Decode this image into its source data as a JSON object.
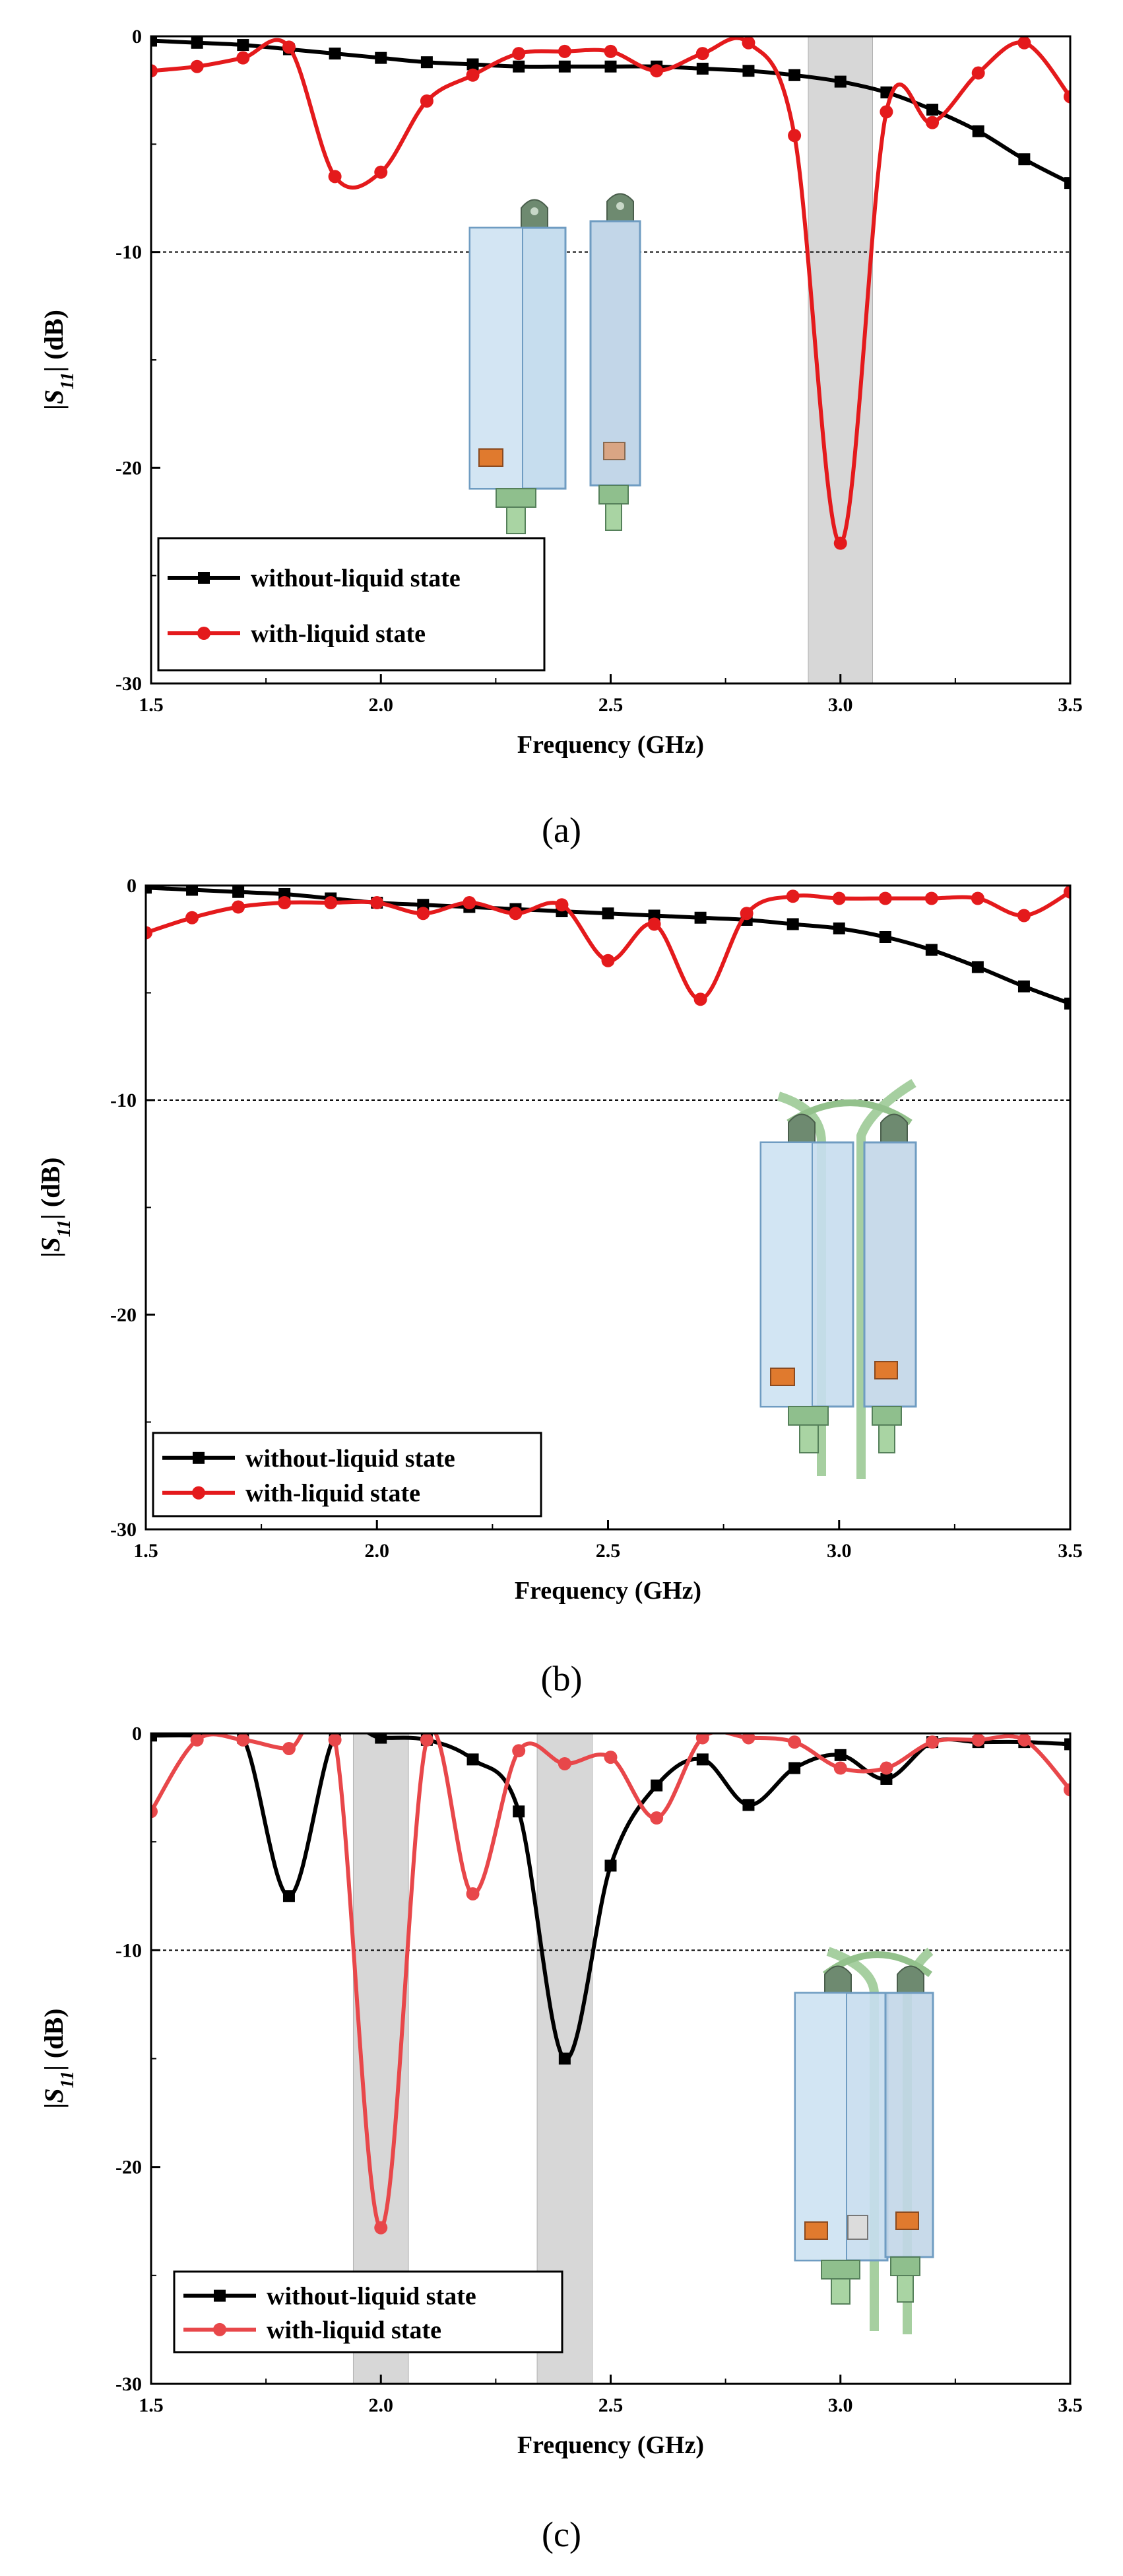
{
  "colors": {
    "series_without": "#000000",
    "series_with_a": "#e41a1c",
    "series_with_b": "#e41a1c",
    "series_with_c": "#e8474a",
    "highlight_band": "#d0d0d0",
    "threshold_line": "#000000"
  },
  "chart_data": [
    {
      "type": "line",
      "panel": "(a)",
      "xlabel": "Frequency (GHz)",
      "ylabel_prefix": "|",
      "ylabel_symbol": "S",
      "ylabel_subscript": "11",
      "ylabel_suffix": "| (dB)",
      "xlim": [
        1.5,
        3.5
      ],
      "ylim": [
        -30,
        0
      ],
      "xticks": [
        "1.5",
        "2.0",
        "2.5",
        "3.0",
        "3.5"
      ],
      "yticks": [
        "0",
        "-10",
        "-20",
        "-30"
      ],
      "ytick_values": [
        0,
        -10,
        -20,
        -30
      ],
      "threshold": -10,
      "highlight_bands": [
        [
          2.93,
          3.07
        ]
      ],
      "legend_position": "bottom-left",
      "inset": "antenna-without-tube",
      "series": [
        {
          "name": "without-liquid state",
          "color_key": "series_without",
          "marker": "square",
          "x": [
            1.5,
            1.6,
            1.7,
            1.8,
            1.9,
            2.0,
            2.1,
            2.2,
            2.3,
            2.4,
            2.5,
            2.6,
            2.7,
            2.8,
            2.9,
            3.0,
            3.1,
            3.2,
            3.3,
            3.4,
            3.5
          ],
          "y": [
            -0.2,
            -0.3,
            -0.4,
            -0.6,
            -0.8,
            -1.0,
            -1.2,
            -1.3,
            -1.4,
            -1.4,
            -1.4,
            -1.4,
            -1.5,
            -1.6,
            -1.8,
            -2.1,
            -2.6,
            -3.4,
            -4.4,
            -5.7,
            -6.8
          ]
        },
        {
          "name": "with-liquid state",
          "color_key": "series_with_a",
          "marker": "circle",
          "x": [
            1.5,
            1.6,
            1.7,
            1.8,
            1.9,
            2.0,
            2.1,
            2.2,
            2.3,
            2.4,
            2.5,
            2.6,
            2.7,
            2.8,
            2.9,
            3.0,
            3.1,
            3.2,
            3.3,
            3.4,
            3.5
          ],
          "y": [
            -1.6,
            -1.4,
            -1.0,
            -0.5,
            -6.5,
            -6.3,
            -3.0,
            -1.8,
            -0.8,
            -0.7,
            -0.7,
            -1.6,
            -0.8,
            -0.3,
            -4.6,
            -23.5,
            -3.5,
            -4.0,
            -1.7,
            -0.3,
            -2.8
          ]
        }
      ]
    },
    {
      "type": "line",
      "panel": "(b)",
      "xlabel": "Frequency (GHz)",
      "ylabel_prefix": "|",
      "ylabel_symbol": "S",
      "ylabel_subscript": "11",
      "ylabel_suffix": "| (dB)",
      "xlim": [
        1.5,
        3.5
      ],
      "ylim": [
        -30,
        0
      ],
      "xticks": [
        "1.5",
        "2.0",
        "2.5",
        "3.0",
        "3.5"
      ],
      "yticks": [
        "0",
        "-10",
        "-20",
        "-30"
      ],
      "ytick_values": [
        0,
        -10,
        -20,
        -30
      ],
      "threshold": -10,
      "highlight_bands": [],
      "legend_position": "bottom-left",
      "inset": "antenna-with-tube",
      "series": [
        {
          "name": "without-liquid state",
          "color_key": "series_without",
          "marker": "square",
          "x": [
            1.5,
            1.6,
            1.7,
            1.8,
            1.9,
            2.0,
            2.1,
            2.2,
            2.3,
            2.4,
            2.5,
            2.6,
            2.7,
            2.8,
            2.9,
            3.0,
            3.1,
            3.2,
            3.3,
            3.4,
            3.5
          ],
          "y": [
            -0.1,
            -0.2,
            -0.3,
            -0.4,
            -0.6,
            -0.8,
            -0.9,
            -1.0,
            -1.1,
            -1.2,
            -1.3,
            -1.4,
            -1.5,
            -1.6,
            -1.8,
            -2.0,
            -2.4,
            -3.0,
            -3.8,
            -4.7,
            -5.5
          ]
        },
        {
          "name": "with-liquid state",
          "color_key": "series_with_b",
          "marker": "circle",
          "x": [
            1.5,
            1.6,
            1.7,
            1.8,
            1.9,
            2.0,
            2.1,
            2.2,
            2.3,
            2.4,
            2.5,
            2.6,
            2.7,
            2.8,
            2.9,
            3.0,
            3.1,
            3.2,
            3.3,
            3.4,
            3.5
          ],
          "y": [
            -2.2,
            -1.5,
            -1.0,
            -0.8,
            -0.8,
            -0.8,
            -1.3,
            -0.8,
            -1.3,
            -0.9,
            -3.5,
            -1.8,
            -5.3,
            -1.3,
            -0.5,
            -0.6,
            -0.6,
            -0.6,
            -0.6,
            -1.4,
            -0.3
          ]
        }
      ]
    },
    {
      "type": "line",
      "panel": "(c)",
      "xlabel": "Frequency (GHz)",
      "ylabel_prefix": "|",
      "ylabel_symbol": "S",
      "ylabel_subscript": "11",
      "ylabel_suffix": "| (dB)",
      "xlim": [
        1.5,
        3.5
      ],
      "ylim": [
        -30,
        0
      ],
      "xticks": [
        "1.5",
        "2.0",
        "2.5",
        "3.0",
        "3.5"
      ],
      "yticks": [
        "0",
        "-10",
        "-20",
        "-30"
      ],
      "ytick_values": [
        0,
        -10,
        -20,
        -30
      ],
      "threshold": -10,
      "highlight_bands": [
        [
          1.94,
          2.06
        ],
        [
          2.34,
          2.46
        ]
      ],
      "legend_position": "bottom-left",
      "inset": "antenna-with-tube-and-chip",
      "series": [
        {
          "name": "without-liquid state",
          "color_key": "series_without",
          "marker": "square",
          "x": [
            1.5,
            1.6,
            1.7,
            1.8,
            1.9,
            2.0,
            2.1,
            2.2,
            2.3,
            2.4,
            2.5,
            2.6,
            2.7,
            2.8,
            2.9,
            3.0,
            3.1,
            3.2,
            3.3,
            3.4,
            3.5
          ],
          "y": [
            -0.1,
            -0.1,
            -0.2,
            -7.5,
            -0.1,
            -0.2,
            -0.3,
            -1.2,
            -3.6,
            -15.0,
            -6.1,
            -2.4,
            -1.2,
            -3.3,
            -1.6,
            -1.0,
            -2.1,
            -0.4,
            -0.4,
            -0.4,
            -0.5
          ]
        },
        {
          "name": "with-liquid state",
          "color_key": "series_with_c",
          "marker": "circle",
          "x": [
            1.5,
            1.6,
            1.7,
            1.8,
            1.9,
            2.0,
            2.1,
            2.2,
            2.3,
            2.4,
            2.5,
            2.6,
            2.7,
            2.8,
            2.9,
            3.0,
            3.1,
            3.2,
            3.3,
            3.4,
            3.5
          ],
          "y": [
            -3.6,
            -0.3,
            -0.3,
            -0.7,
            -0.3,
            -22.8,
            -0.3,
            -7.4,
            -0.8,
            -1.4,
            -1.1,
            -3.9,
            -0.2,
            -0.2,
            -0.4,
            -1.6,
            -1.6,
            -0.4,
            -0.3,
            -0.3,
            -2.6
          ]
        }
      ]
    }
  ]
}
